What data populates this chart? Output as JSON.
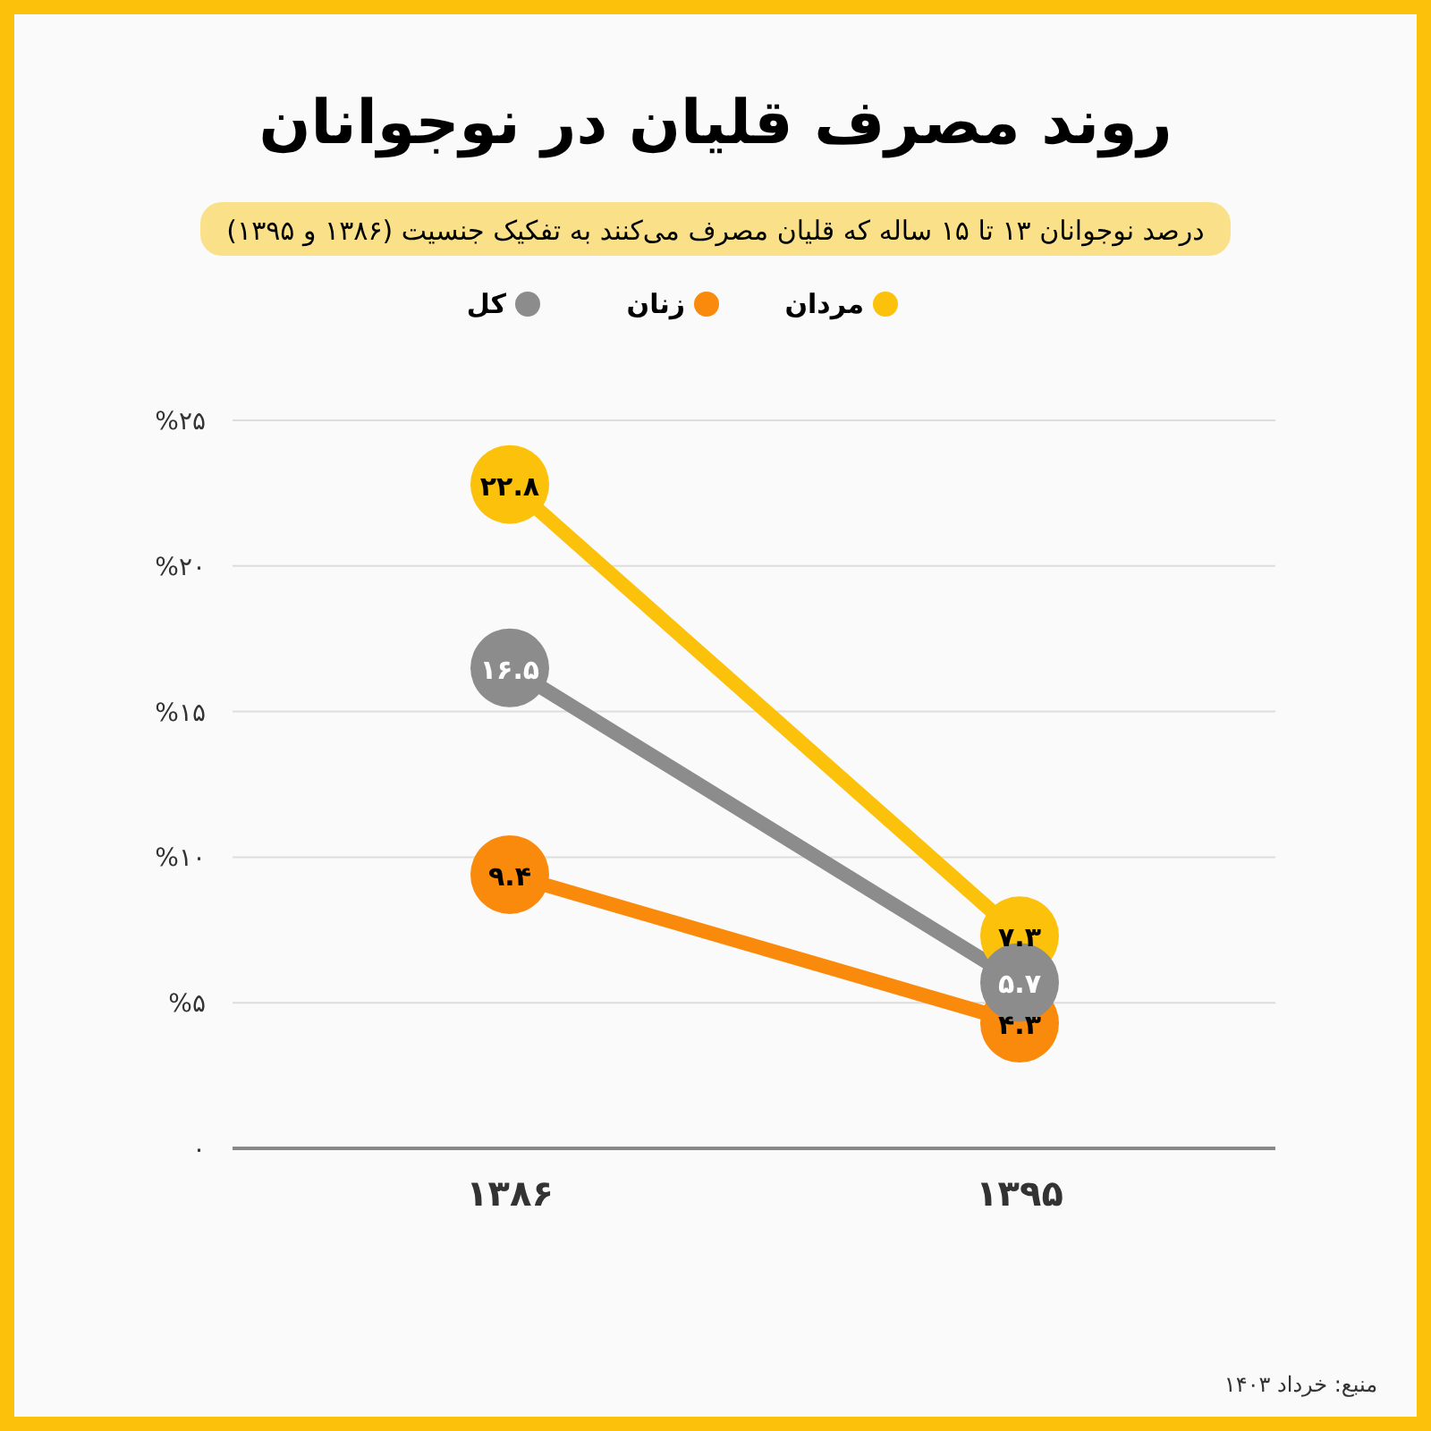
{
  "chart_data": {
    "type": "line",
    "title": "روند مصرف قلیان در نوجوانان",
    "subtitle": "درصد نوجوانان ۱۳ تا ۱۵ ساله که قلیان مصرف می‌کنند به تفکیک جنسیت (۱۳۸۶ و ۱۳۹۵)",
    "categories": [
      "۱۳۸۶",
      "۱۳۹۵"
    ],
    "series": [
      {
        "name": "مردان",
        "color": "#fcc10a",
        "values": [
          22.8,
          7.3
        ],
        "value_labels": [
          "۲۲.۸",
          "۷.۳"
        ]
      },
      {
        "name": "زنان",
        "color": "#f98a0c",
        "values": [
          9.4,
          4.3
        ],
        "value_labels": [
          "۹.۴",
          "۴.۳"
        ]
      },
      {
        "name": "کل",
        "color": "#8c8c8c",
        "values": [
          16.5,
          5.7
        ],
        "value_labels": [
          "۱۶.۵",
          "۵.۷"
        ]
      }
    ],
    "ylim": [
      0,
      25
    ],
    "yticks": [
      {
        "value": 0,
        "label": "۰"
      },
      {
        "value": 5,
        "label": "%۵"
      },
      {
        "value": 10,
        "label": "%۱۰"
      },
      {
        "value": 15,
        "label": "%۱۵"
      },
      {
        "value": 20,
        "label": "%۲۰"
      },
      {
        "value": 25,
        "label": "%۲۵"
      }
    ],
    "grid": "y",
    "legend": "top",
    "marker": "circle",
    "line_style": "solid",
    "annotations": [
      "منبع: خرداد ۱۴۰۳"
    ]
  }
}
